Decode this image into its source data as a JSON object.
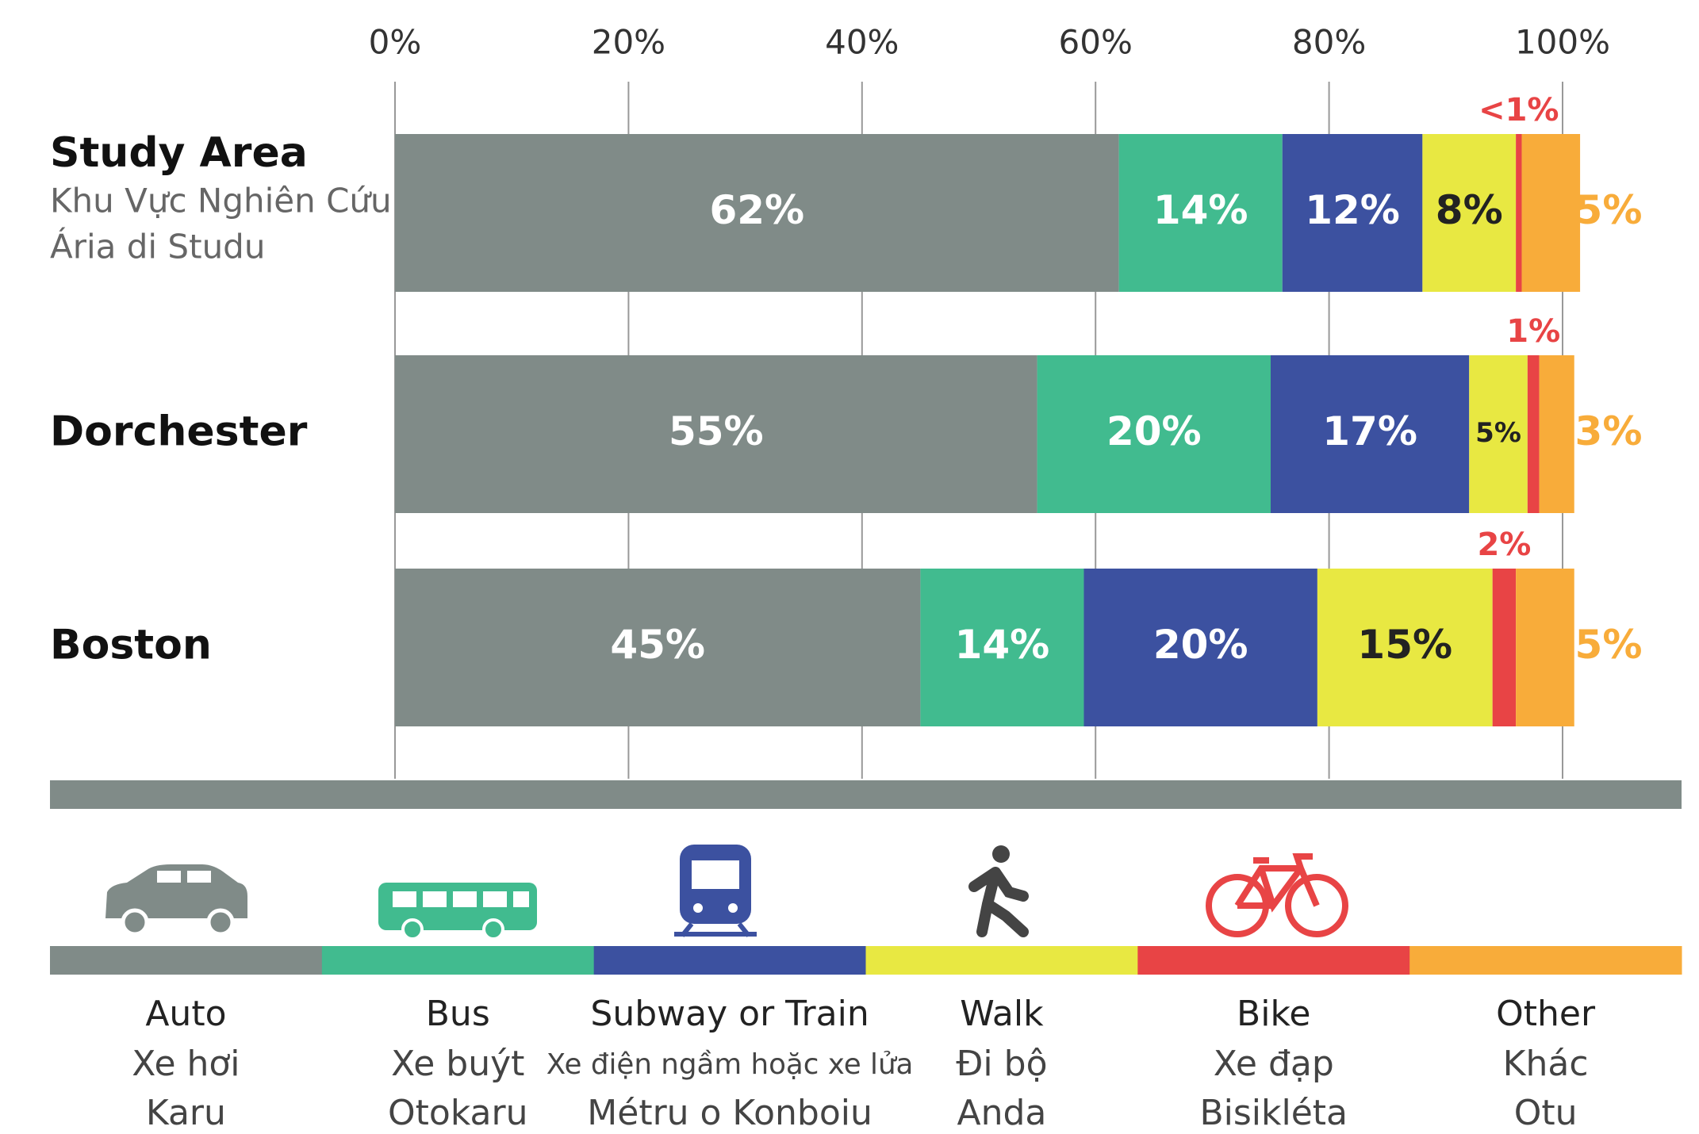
{
  "chart_data": {
    "type": "bar",
    "orientation": "horizontal",
    "stacked": true,
    "categories": [
      "Study Area",
      "Dorchester",
      "Boston"
    ],
    "category_subtitles": [
      [
        "Khu Vực Nghiên Cứu",
        "Ária di Studu"
      ],
      [],
      []
    ],
    "xlim": [
      0,
      100
    ],
    "xticks": [
      {
        "value": 0,
        "label": "0%"
      },
      {
        "value": 20,
        "label": "20%"
      },
      {
        "value": 40,
        "label": "40%"
      },
      {
        "value": 60,
        "label": "60%"
      },
      {
        "value": 80,
        "label": "80%"
      },
      {
        "value": 100,
        "label": "100%"
      }
    ],
    "grid": true,
    "series": [
      {
        "name": "Auto",
        "translations": [
          "Xe hơi",
          "Karu"
        ],
        "color": "#808b88",
        "label_position": "inside",
        "label_color": "#ffffff",
        "values": [
          62,
          55,
          45
        ],
        "value_labels": [
          "62%",
          "55%",
          "45%"
        ]
      },
      {
        "name": "Bus",
        "translations": [
          "Xe buýt",
          "Otokaru"
        ],
        "color": "#41bb8f",
        "label_position": "inside",
        "label_color": "#ffffff",
        "values": [
          14,
          20,
          14
        ],
        "value_labels": [
          "14%",
          "20%",
          "14%"
        ]
      },
      {
        "name": "Subway or Train",
        "translations": [
          "Xe điện ngầm hoặc xe lửa",
          "Métru o Konboiu"
        ],
        "color": "#3c51a0",
        "label_position": "inside",
        "label_color": "#ffffff",
        "values": [
          12,
          17,
          20
        ],
        "value_labels": [
          "12%",
          "17%",
          "20%"
        ]
      },
      {
        "name": "Walk",
        "translations": [
          "Đi bộ",
          "Anda"
        ],
        "color": "#e8e842",
        "label_position": "inside",
        "label_color": "#222222",
        "values": [
          8,
          5,
          15
        ],
        "value_labels": [
          "8%",
          "5%",
          "15%"
        ]
      },
      {
        "name": "Bike",
        "translations": [
          "Xe đạp",
          "Bisikléta"
        ],
        "color": "#e84445",
        "label_position": "above",
        "label_color": "#e84445",
        "values": [
          0.5,
          1,
          2
        ],
        "value_labels": [
          "<1%",
          "1%",
          "2%"
        ]
      },
      {
        "name": "Other",
        "translations": [
          "Khác",
          "Otu"
        ],
        "color": "#f8ac3a",
        "label_position": "right",
        "label_color": "#f8ac3a",
        "values": [
          5,
          3,
          5
        ],
        "value_labels": [
          "5%",
          "3%",
          "5%"
        ]
      }
    ]
  }
}
